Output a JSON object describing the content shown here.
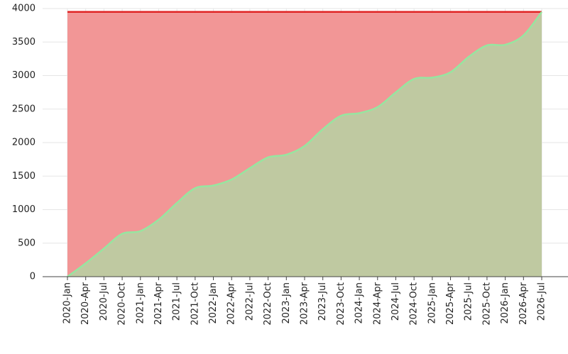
{
  "chart_data": {
    "type": "area",
    "categories": [
      "2020-Jan",
      "2020-Apr",
      "2020-Jul",
      "2020-Oct",
      "2021-Jan",
      "2021-Apr",
      "2021-Jul",
      "2021-Oct",
      "2022-Jan",
      "2022-Apr",
      "2022-Jul",
      "2022-Oct",
      "2023-Jan",
      "2023-Apr",
      "2023-Jul",
      "2023-Oct",
      "2024-Jan",
      "2024-Apr",
      "2024-Jul",
      "2024-Oct",
      "2025-Jan",
      "2025-Apr",
      "2025-Jul",
      "2025-Oct",
      "2026-Jan",
      "2026-Apr",
      "2026-Jul"
    ],
    "series": [
      {
        "color": "#e02424",
        "fill": "#f29696",
        "values": [
          3950,
          3950,
          3950,
          3950,
          3950,
          3950,
          3950,
          3950,
          3950,
          3950,
          3950,
          3950,
          3950,
          3950,
          3950,
          3950,
          3950,
          3950,
          3950,
          3950,
          3950,
          3950,
          3950,
          3950,
          3950,
          3950,
          3950
        ]
      },
      {
        "color": "#96e6a0",
        "fill": "#bfc9a1",
        "values": [
          0,
          200,
          420,
          640,
          680,
          850,
          1100,
          1320,
          1360,
          1450,
          1620,
          1780,
          1820,
          1950,
          2200,
          2400,
          2440,
          2530,
          2750,
          2950,
          2970,
          3050,
          3280,
          3450,
          3460,
          3600,
          3950
        ]
      }
    ],
    "ylim": [
      0,
      4000
    ],
    "yticks": [
      0,
      500,
      1000,
      1500,
      2000,
      2500,
      3000,
      3500,
      4000
    ],
    "grid": true
  }
}
